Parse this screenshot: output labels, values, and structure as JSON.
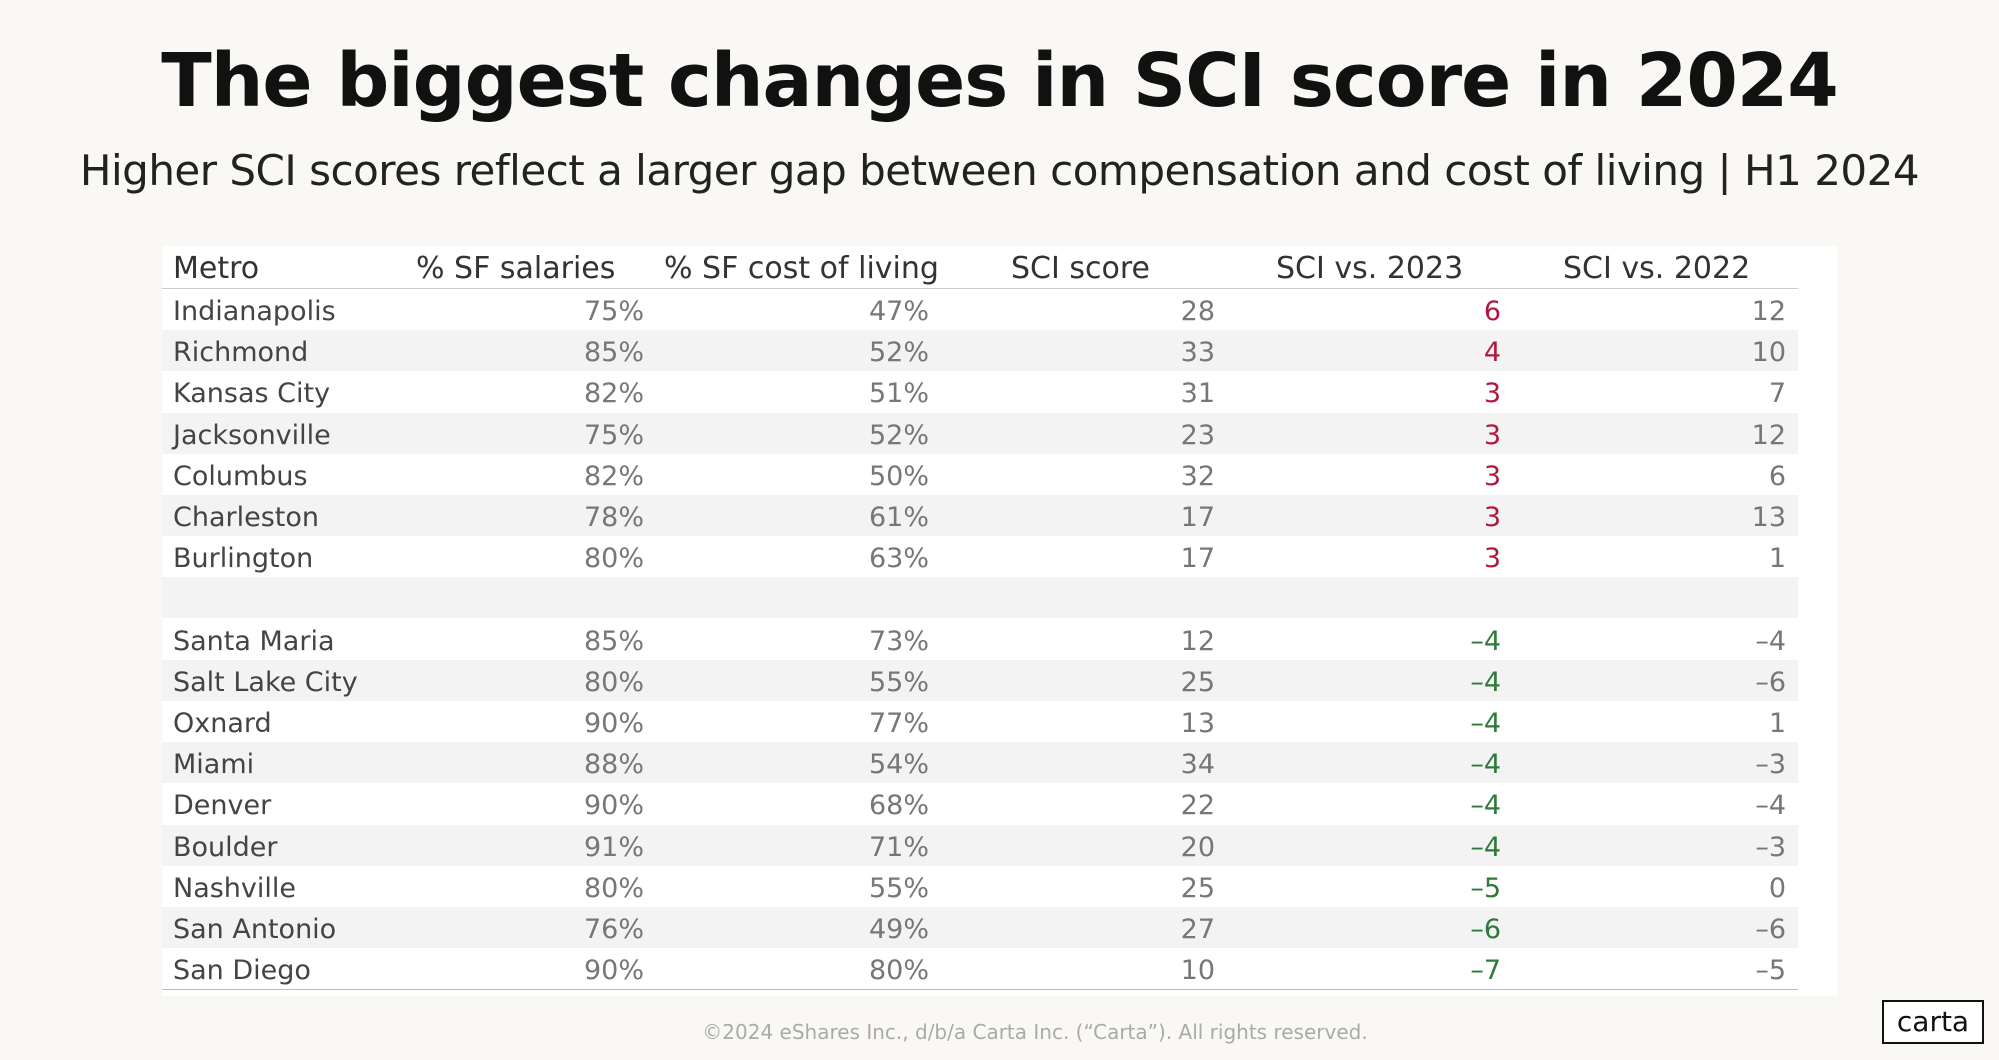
{
  "header": {
    "title": "The biggest changes in SCI score in 2024",
    "subtitle": "Higher SCI scores reflect a larger gap between compensation and cost of living | H1 2024"
  },
  "table": {
    "columns": [
      "Metro",
      "% SF salaries",
      "% SF cost of living",
      "SCI score",
      "SCI vs. 2023",
      "SCI vs. 2022"
    ],
    "groups": [
      {
        "color": "#b0183d",
        "rows": [
          [
            "Indianapolis",
            "75%",
            "47%",
            "28",
            "6",
            "12"
          ],
          [
            "Richmond",
            "85%",
            "52%",
            "33",
            "4",
            "10"
          ],
          [
            "Kansas City",
            "82%",
            "51%",
            "31",
            "3",
            "7"
          ],
          [
            "Jacksonville",
            "75%",
            "52%",
            "23",
            "3",
            "12"
          ],
          [
            "Columbus",
            "82%",
            "50%",
            "32",
            "3",
            "6"
          ],
          [
            "Charleston",
            "78%",
            "61%",
            "17",
            "3",
            "13"
          ],
          [
            "Burlington",
            "80%",
            "63%",
            "17",
            "3",
            "1"
          ]
        ]
      },
      {
        "color": "#2e7a3a",
        "rows": [
          [
            "Santa Maria",
            "85%",
            "73%",
            "12",
            "–4",
            "–4"
          ],
          [
            "Salt Lake City",
            "80%",
            "55%",
            "25",
            "–4",
            "–6"
          ],
          [
            "Oxnard",
            "90%",
            "77%",
            "13",
            "–4",
            "1"
          ],
          [
            "Miami",
            "88%",
            "54%",
            "34",
            "–4",
            "–3"
          ],
          [
            "Denver",
            "90%",
            "68%",
            "22",
            "–4",
            "–4"
          ],
          [
            "Boulder",
            "91%",
            "71%",
            "20",
            "–4",
            "–3"
          ],
          [
            "Nashville",
            "80%",
            "55%",
            "25",
            "–5",
            "0"
          ],
          [
            "San Antonio",
            "76%",
            "49%",
            "27",
            "–6",
            "–6"
          ],
          [
            "San Diego",
            "90%",
            "80%",
            "10",
            "–7",
            "–5"
          ]
        ]
      }
    ]
  },
  "footer": {
    "copyright": "©2024 eShares Inc., d/b/a Carta Inc. (“Carta”). All rights reserved.",
    "logo": "carta"
  }
}
